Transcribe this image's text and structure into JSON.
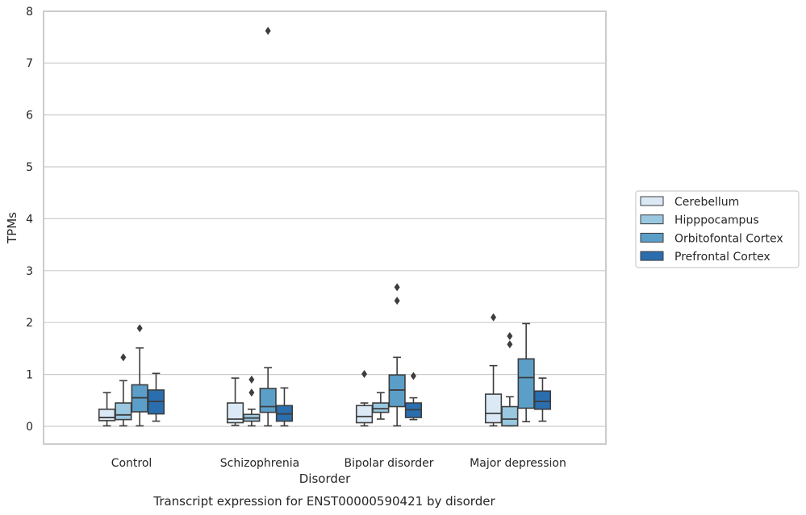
{
  "chart_data": {
    "type": "box",
    "xlabel": "Disorder",
    "ylabel": "TPMs",
    "caption": "Transcript expression for ENST00000590421 by disorder",
    "ylim": [
      -0.35,
      8.0
    ],
    "yticks": [
      "0",
      "1",
      "2",
      "3",
      "4",
      "5",
      "6",
      "7",
      "8"
    ],
    "grid": true,
    "legend_position": "right",
    "categories": [
      "Control",
      "Schizophrenia",
      "Bipolar disorder",
      "Major depression"
    ],
    "series": [
      {
        "name": "Cerebellum",
        "color": "#dbe9f6",
        "boxes": [
          {
            "whislo": 0.01,
            "q1": 0.11,
            "med": 0.17,
            "q3": 0.33,
            "whishi": 0.65,
            "fliers": []
          },
          {
            "whislo": 0.02,
            "q1": 0.07,
            "med": 0.14,
            "q3": 0.45,
            "whishi": 0.93,
            "fliers": []
          },
          {
            "whislo": 0.01,
            "q1": 0.07,
            "med": 0.19,
            "q3": 0.4,
            "whishi": 0.45,
            "fliers": [
              1.01
            ]
          },
          {
            "whislo": 0.01,
            "q1": 0.07,
            "med": 0.25,
            "q3": 0.62,
            "whishi": 1.17,
            "fliers": [
              2.1
            ]
          }
        ]
      },
      {
        "name": "Hipppocampus",
        "color": "#9ac8e0",
        "boxes": [
          {
            "whislo": 0.01,
            "q1": 0.13,
            "med": 0.22,
            "q3": 0.45,
            "whishi": 0.88,
            "fliers": [
              1.33
            ]
          },
          {
            "whislo": 0.01,
            "q1": 0.1,
            "med": 0.16,
            "q3": 0.23,
            "whishi": 0.33,
            "fliers": [
              0.65,
              0.9
            ]
          },
          {
            "whislo": 0.14,
            "q1": 0.27,
            "med": 0.34,
            "q3": 0.45,
            "whishi": 0.65,
            "fliers": []
          },
          {
            "whislo": 0.01,
            "q1": 0.01,
            "med": 0.14,
            "q3": 0.38,
            "whishi": 0.57,
            "fliers": [
              1.58,
              1.74
            ]
          }
        ]
      },
      {
        "name": "Orbitofontal Cortex",
        "color": "#5b9fc9",
        "boxes": [
          {
            "whislo": 0.01,
            "q1": 0.28,
            "med": 0.55,
            "q3": 0.8,
            "whishi": 1.51,
            "fliers": [
              1.89
            ]
          },
          {
            "whislo": 0.01,
            "q1": 0.27,
            "med": 0.38,
            "q3": 0.73,
            "whishi": 1.13,
            "fliers": [
              7.62
            ]
          },
          {
            "whislo": 0.01,
            "q1": 0.38,
            "med": 0.7,
            "q3": 0.99,
            "whishi": 1.33,
            "fliers": [
              2.42,
              2.68
            ]
          },
          {
            "whislo": 0.09,
            "q1": 0.35,
            "med": 0.94,
            "q3": 1.3,
            "whishi": 1.98,
            "fliers": []
          }
        ]
      },
      {
        "name": "Prefrontal Cortex",
        "color": "#2a6eaf",
        "boxes": [
          {
            "whislo": 0.1,
            "q1": 0.24,
            "med": 0.48,
            "q3": 0.7,
            "whishi": 1.02,
            "fliers": []
          },
          {
            "whislo": 0.01,
            "q1": 0.1,
            "med": 0.24,
            "q3": 0.4,
            "whishi": 0.74,
            "fliers": []
          },
          {
            "whislo": 0.13,
            "q1": 0.17,
            "med": 0.32,
            "q3": 0.45,
            "whishi": 0.55,
            "fliers": [
              0.97
            ]
          },
          {
            "whislo": 0.1,
            "q1": 0.33,
            "med": 0.48,
            "q3": 0.68,
            "whishi": 0.93,
            "fliers": []
          }
        ]
      }
    ]
  }
}
